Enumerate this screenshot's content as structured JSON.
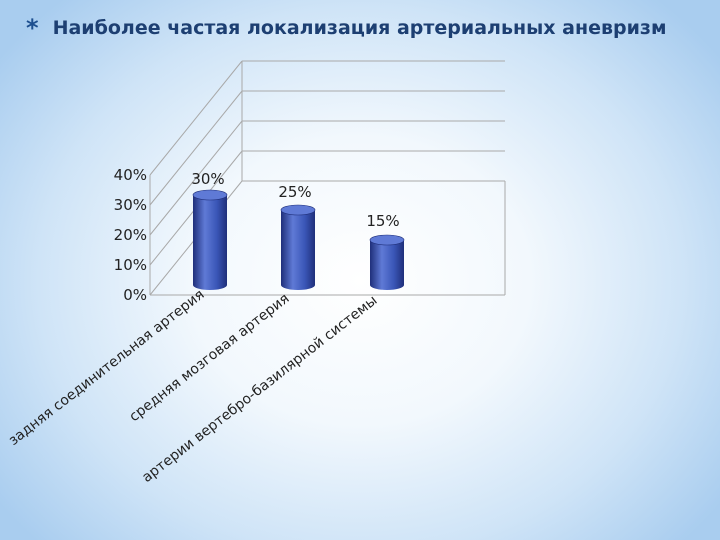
{
  "slide": {
    "bullet": "*",
    "title": "Наиболее частая локализация артериальных аневризм"
  },
  "colors": {
    "bar": "#3a56b7",
    "bar_dark": "#1f2f7a",
    "bar_light": "#5f7ad6",
    "grid": "#a9a9a9"
  },
  "chart_data": {
    "type": "bar",
    "three_d": true,
    "categories": [
      "задняя соединительная артерия",
      "средняя мозговая артерия",
      "артерии вертебро-базилярной системы"
    ],
    "values": [
      30,
      25,
      15
    ],
    "data_labels": [
      "30%",
      "25%",
      "15%"
    ],
    "ylim": [
      0,
      40
    ],
    "yticks": [
      "0%",
      "10%",
      "20%",
      "30%",
      "40%"
    ],
    "grid": true,
    "legend": false,
    "title": "",
    "xlabel": "",
    "ylabel": ""
  }
}
